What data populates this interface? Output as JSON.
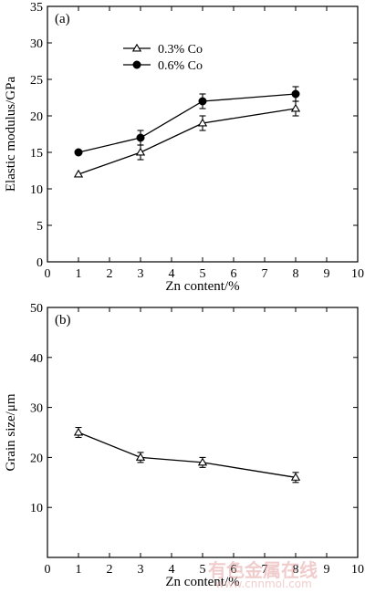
{
  "chart_data": [
    {
      "type": "line",
      "panel_label": "(a)",
      "xlabel": "Zn content/%",
      "ylabel": "Elastic modulus/GPa",
      "xlim": [
        0,
        10
      ],
      "ylim": [
        0,
        35
      ],
      "xticks": [
        0,
        1,
        2,
        3,
        4,
        5,
        6,
        7,
        8,
        9,
        10
      ],
      "yticks": [
        0,
        5,
        10,
        15,
        20,
        25,
        30,
        35
      ],
      "legend_placement": "top-left",
      "series": [
        {
          "name": "0.3% Co",
          "marker": "triangle-open",
          "x": [
            1,
            3,
            5,
            8
          ],
          "values": [
            12,
            15,
            19,
            21
          ],
          "errors": [
            0,
            1,
            1,
            1
          ]
        },
        {
          "name": "0.6% Co",
          "marker": "circle-filled",
          "x": [
            1,
            3,
            5,
            8
          ],
          "values": [
            15,
            17,
            22,
            23
          ],
          "errors": [
            0,
            1,
            1,
            1
          ]
        }
      ]
    },
    {
      "type": "line",
      "panel_label": "(b)",
      "xlabel": "Zn content/%",
      "ylabel": "Grain size/μm",
      "xlim": [
        0,
        10
      ],
      "ylim": [
        0,
        50
      ],
      "xticks": [
        0,
        1,
        2,
        3,
        4,
        5,
        6,
        7,
        8,
        9,
        10
      ],
      "yticks": [
        10,
        20,
        30,
        40,
        50
      ],
      "series": [
        {
          "marker": "triangle-open",
          "x": [
            1,
            3,
            5,
            8
          ],
          "values": [
            25,
            20,
            19,
            16
          ],
          "errors": [
            1,
            1,
            1,
            1
          ]
        }
      ]
    }
  ],
  "watermark": {
    "text": "有色金属在线",
    "sub": "www.cnnmol.com"
  }
}
